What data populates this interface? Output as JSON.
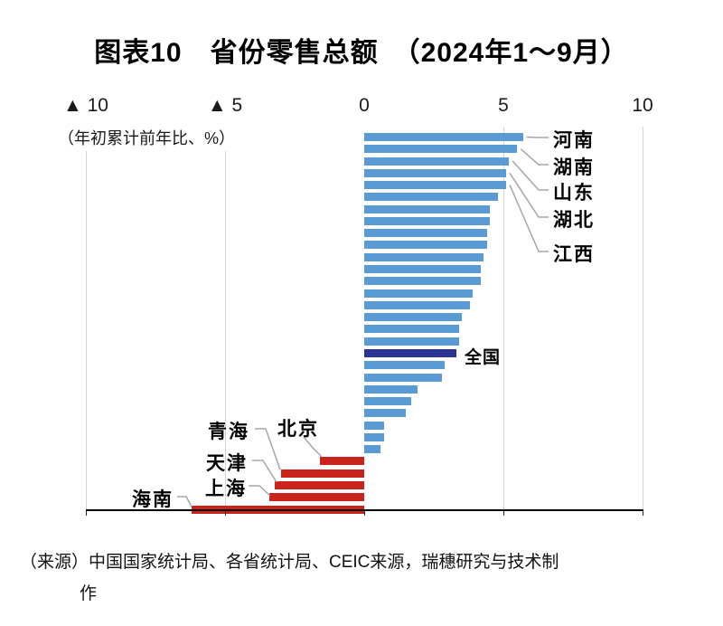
{
  "title": "图表10　省份零售总额　（2024年1～9月）",
  "subtitle": "（年初累计前年比、%）",
  "source": {
    "lines": [
      "（来源）中国国家统计局、各省统计局、CEIC来源，瑞穗研究与技术制",
      "作"
    ]
  },
  "chart_data": {
    "type": "bar",
    "orientation": "horizontal",
    "title": "图表10 省份零售总额（2024年1～9月）",
    "xlabel": "年初累计前年比、%",
    "xlim": [
      -10,
      10
    ],
    "grid": "vertical",
    "negative_notation": "▲ means minus",
    "x_ticks": [
      {
        "value": -10,
        "label": "▲ 10"
      },
      {
        "value": -5,
        "label": "▲ 5"
      },
      {
        "value": 0,
        "label": "0"
      },
      {
        "value": 5,
        "label": "5"
      },
      {
        "value": 10,
        "label": "10"
      }
    ],
    "colors": {
      "positive": "#5b9bd5",
      "national": "#2a3492",
      "negative": "#c9231c"
    },
    "bars": [
      {
        "name": "河南",
        "value": 5.7
      },
      {
        "name": "湖南",
        "value": 5.5
      },
      {
        "name": "山东",
        "value": 5.2
      },
      {
        "name": "湖北",
        "value": 5.1
      },
      {
        "name": "江西",
        "value": 5.1
      },
      {
        "name": "",
        "value": 4.8
      },
      {
        "name": "",
        "value": 4.5
      },
      {
        "name": "",
        "value": 4.5
      },
      {
        "name": "",
        "value": 4.4
      },
      {
        "name": "",
        "value": 4.4
      },
      {
        "name": "",
        "value": 4.3
      },
      {
        "name": "",
        "value": 4.2
      },
      {
        "name": "",
        "value": 4.2
      },
      {
        "name": "",
        "value": 3.9
      },
      {
        "name": "",
        "value": 3.8
      },
      {
        "name": "",
        "value": 3.5
      },
      {
        "name": "",
        "value": 3.4
      },
      {
        "name": "",
        "value": 3.4
      },
      {
        "name": "全国",
        "value": 3.3,
        "national": true
      },
      {
        "name": "",
        "value": 2.9
      },
      {
        "name": "",
        "value": 2.8
      },
      {
        "name": "",
        "value": 1.9
      },
      {
        "name": "",
        "value": 1.7
      },
      {
        "name": "",
        "value": 1.5
      },
      {
        "name": "",
        "value": 0.7
      },
      {
        "name": "",
        "value": 0.7
      },
      {
        "name": "",
        "value": 0.6
      },
      {
        "name": "北京",
        "value": -1.6
      },
      {
        "name": "青海",
        "value": -3.0
      },
      {
        "name": "天津",
        "value": -3.2
      },
      {
        "name": "上海",
        "value": -3.4
      },
      {
        "name": "海南",
        "value": -6.2
      }
    ]
  }
}
